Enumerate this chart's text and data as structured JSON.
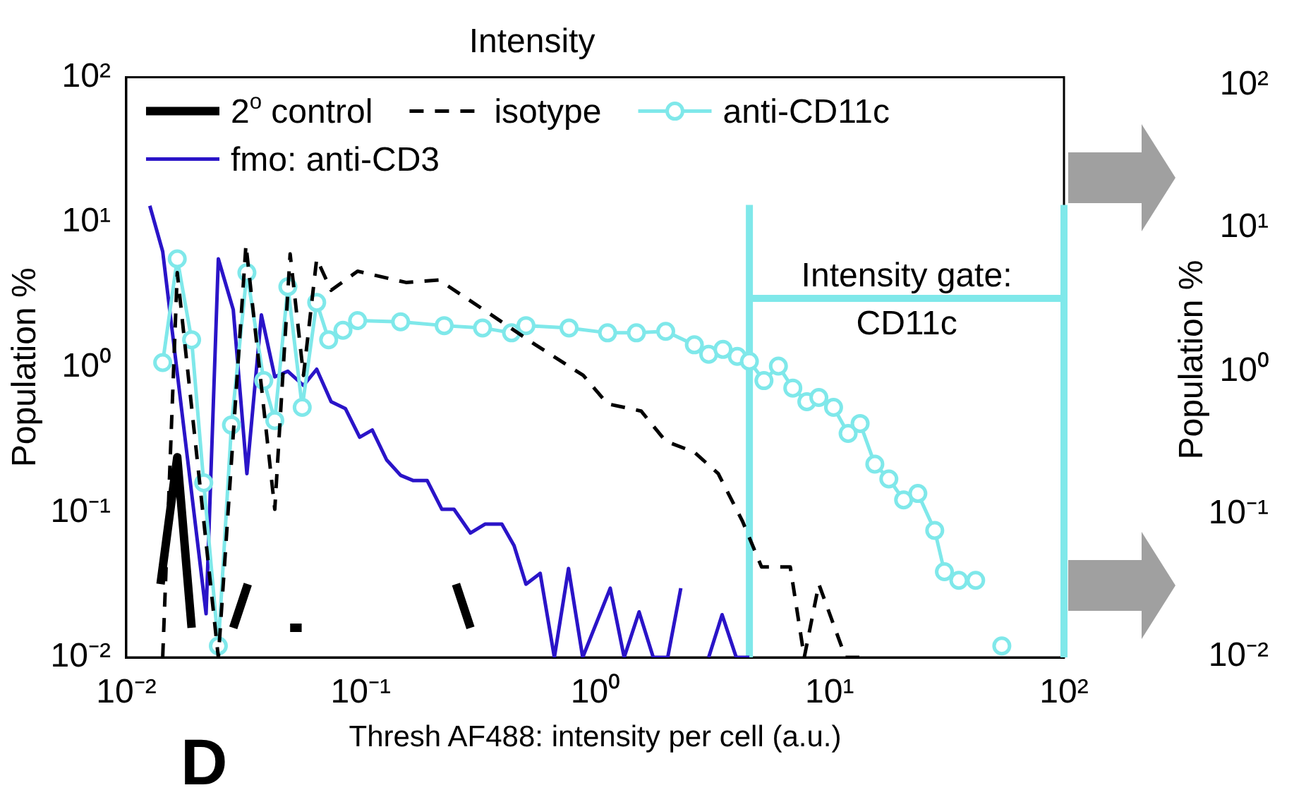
{
  "chart_data": [
    {
      "type": "line",
      "title": "Intensity",
      "xlabel": "Thresh AF488: intensity per cell (a.u.)",
      "ylabel": "Population %",
      "log": "xy",
      "grid": false,
      "legend": "top",
      "annotations": [
        "D"
      ],
      "xlim": [
        0.01,
        100
      ],
      "xticks": [
        {
          "value": 0.01,
          "label": "10⁻²"
        },
        {
          "value": 0.1,
          "label": "10⁻¹"
        },
        {
          "value": 1,
          "label": "10⁰"
        },
        {
          "value": 10,
          "label": "10¹"
        },
        {
          "value": 100,
          "label": "10²"
        }
      ],
      "ylim": [
        0.01,
        100
      ],
      "yticks": [
        {
          "value": 0.01,
          "label": "10⁻²"
        },
        {
          "value": 0.1,
          "label": "10⁻¹"
        },
        {
          "value": 1,
          "label": "10⁰"
        },
        {
          "value": 10,
          "label": "10¹"
        },
        {
          "value": 100,
          "label": "10²"
        }
      ],
      "ref_lines": [
        {
          "axis": "x",
          "value": 4.55,
          "label": "Intensity gate:\nCD11c",
          "color": "#7fe8ea"
        },
        {
          "axis": "x",
          "value": 100,
          "color": "#7fe8ea"
        }
      ],
      "series": [
        {
          "name": "2$^{o}$ control",
          "color": "#000000",
          "line_style": "solid",
          "marker": "none",
          "x": [
            0.014,
            0.0165,
            0.019,
            0.023,
            0.0286,
            0.033,
            0.04,
            0.05,
            0.056,
            0.1,
            0.255,
            0.294
          ],
          "values": [
            0.032,
            0.24,
            0.016,
            null,
            0.016,
            0.032,
            null,
            0.016,
            0.016,
            null,
            0.032,
            0.016
          ]
        },
        {
          "name": "isotype",
          "color": "#000000",
          "line_style": "dashed",
          "marker": "none",
          "x": [
            0.0143,
            0.0165,
            0.0247,
            0.0324,
            0.043,
            0.05,
            0.057,
            0.0649,
            0.0748,
            0.097,
            0.156,
            0.216,
            0.347,
            0.557,
            0.89,
            1.13,
            1.57,
            2.0,
            2.65,
            3.35,
            4.25,
            5.13,
            6.8,
            7.8,
            9.0,
            11.7,
            13.5
          ],
          "values": [
            0.01,
            4.5,
            0.01,
            7.0,
            0.105,
            6.05,
            0.88,
            5.6,
            3.4,
            4.6,
            3.85,
            4.0,
            2.4,
            1.43,
            0.88,
            0.56,
            0.5,
            0.31,
            0.26,
            0.185,
            0.087,
            0.042,
            0.042,
            0.01,
            0.032,
            0.01,
            0.01
          ]
        },
        {
          "name": "anti-CD11c",
          "color": "#7fe8ea",
          "line_style": "solid",
          "marker": "circle",
          "x": [
            0.0143,
            0.0165,
            0.019,
            0.0214,
            0.0247,
            0.0281,
            0.0327,
            0.0386,
            0.043,
            0.0489,
            0.0563,
            0.0649,
            0.073,
            0.084,
            0.097,
            0.148,
            0.227,
            0.331,
            0.44,
            0.507,
            0.774,
            1.13,
            1.5,
            2.0,
            2.65,
            3.05,
            3.51,
            4.04,
            4.55,
            5.25,
            6.05,
            6.97,
            8.0,
            9.0,
            10.4,
            12.0,
            13.5,
            15.6,
            17.9,
            20.7,
            23.8,
            28.1,
            30.9,
            35.6,
            42,
            48,
            54.3
          ],
          "values": [
            1.08,
            5.6,
            1.55,
            0.16,
            0.012,
            0.4,
            4.5,
            0.81,
            0.43,
            3.6,
            0.53,
            2.8,
            1.55,
            1.8,
            2.1,
            2.06,
            1.94,
            1.87,
            1.73,
            1.94,
            1.87,
            1.73,
            1.73,
            1.77,
            1.43,
            1.23,
            1.33,
            1.19,
            1.1,
            0.81,
            1.02,
            0.72,
            0.58,
            0.62,
            0.53,
            0.35,
            0.41,
            0.215,
            0.17,
            0.122,
            0.135,
            0.075,
            0.039,
            0.034,
            0.034,
            null,
            0.012
          ]
        },
        {
          "name": "fmo: anti-CD3",
          "color": "#2a14c8",
          "line_style": "solid",
          "marker": "none",
          "x": [
            0.0126,
            0.0143,
            0.0219,
            0.0247,
            0.0286,
            0.0327,
            0.0377,
            0.043,
            0.0489,
            0.057,
            0.0649,
            0.0748,
            0.086,
            0.099,
            0.112,
            0.129,
            0.148,
            0.167,
            0.192,
            0.222,
            0.25,
            0.294,
            0.339,
            0.4,
            0.451,
            0.507,
            0.583,
            0.67,
            0.77,
            0.885,
            1.16,
            1.33,
            1.54,
            1.77,
            2.04,
            2.32,
            2.6,
            3.05,
            3.48,
            4.0,
            4.55
          ],
          "values": [
            13,
            6.3,
            0.02,
            5.6,
            2.5,
            0.185,
            2.3,
            0.86,
            0.94,
            0.75,
            0.97,
            0.58,
            0.52,
            0.33,
            0.37,
            0.23,
            0.18,
            0.166,
            0.166,
            0.105,
            0.105,
            0.072,
            0.083,
            0.083,
            0.059,
            0.032,
            0.038,
            0.01,
            0.041,
            0.01,
            0.03,
            0.01,
            0.0206,
            0.01,
            0.01,
            0.03,
            null,
            0.01,
            0.0197,
            0.01,
            0.01
          ]
        }
      ]
    },
    {
      "type": "other",
      "ylabel": "Population %",
      "annotations": [
        "10²",
        "10¹",
        "10⁰",
        "10⁻¹",
        "10⁻²"
      ]
    }
  ]
}
